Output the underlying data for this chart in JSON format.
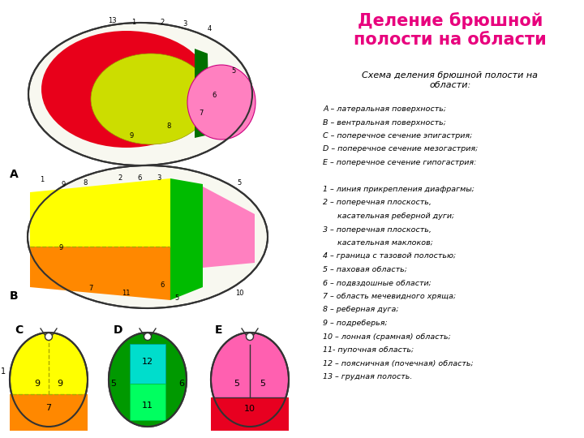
{
  "title": "Деление брюшной\nполости на области",
  "title_color": "#E8007D",
  "title_fontsize": 15,
  "subtitle": "Схема деления брюшной полости на\nобласти:",
  "subtitle_fontsize": 8,
  "legend_lines": [
    "А – латеральная поверхность;",
    "В – вентральная поверхность;",
    "С – поперечное сечение эпигастрия;",
    "D – поперечное сечение мезогастрия;",
    "Е – поперечное сечение гипогастрия:",
    "",
    "1 – линия прикрепления диафрагмы;",
    "2 – поперечная плоскость,",
    "      касательная реберной дуги;",
    "3 – поперечная плоскость,",
    "      касательная маклоков;",
    "4 – граница с тазовой полостью;",
    "5 – паховая область;",
    "6 – подвздошные области;",
    "7 – область мечевидного хряща;",
    "8 – реберная дуга;",
    "9 – подреберья;",
    "10 – лонная (срамная) область;",
    "11- пупочная область;",
    "12 – поясничная (почечная) область;",
    "13 – грудная полость."
  ],
  "legend_fontsize": 6.8,
  "bg_color": "#FFFFFF",
  "colors": {
    "red": "#E8001A",
    "yellow_green": "#CCDD00",
    "yellow": "#FFFF00",
    "green_dark": "#007000",
    "green_bright": "#00E060",
    "cyan": "#00DDCC",
    "orange": "#FF8800",
    "pink": "#FF80C0",
    "hot_pink": "#FF60B0",
    "red_lower": "#E80020",
    "outline": "#333333"
  }
}
